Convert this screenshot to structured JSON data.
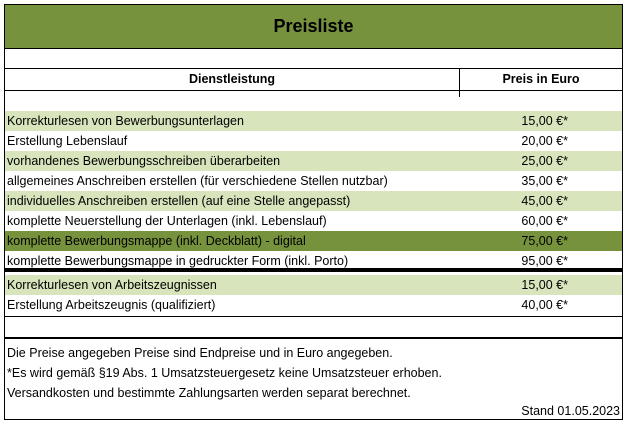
{
  "title": "Preisliste",
  "columns": {
    "service": "Dienstleistung",
    "price": "Preis in Euro"
  },
  "rows": [
    {
      "service": "Korrekturlesen von Bewerbungsunterlagen",
      "price": "15,00 €*"
    },
    {
      "service": "Erstellung Lebenslauf",
      "price": "20,00 €*"
    },
    {
      "service": "vorhandenes Bewerbungsschreiben überarbeiten",
      "price": "25,00 €*"
    },
    {
      "service": "allgemeines Anschreiben erstellen (für verschiedene Stellen nutzbar)",
      "price": "35,00 €*"
    },
    {
      "service": "individuelles Anschreiben erstellen (auf eine Stelle angepasst)",
      "price": "45,00 €*"
    },
    {
      "service": "komplette Neuerstellung der Unterlagen (inkl. Lebenslauf)",
      "price": "60,00 €*"
    },
    {
      "service": "komplette Bewerbungsmappe (inkl. Deckblatt) - digital",
      "price": "75,00 €*"
    },
    {
      "service": "komplette Bewerbungsmappe in gedruckter Form (inkl. Porto)",
      "price": "95,00 €*"
    },
    {
      "service": "Korrekturlesen von Arbeitszeugnissen",
      "price": "15,00 €*"
    },
    {
      "service": "Erstellung Arbeitszeugnis (qualifiziert)",
      "price": "40,00 €*"
    }
  ],
  "notes": [
    "Die Preise angegeben Preise sind Endpreise und in Euro angegeben.",
    "*Es wird gemäß §19 Abs. 1 Umsatzsteuergesetz keine Umsatzsteuer erhoben.",
    "Versandkosten und bestimmte Zahlungsarten werden separat berechnet."
  ],
  "date": "Stand 01.05.2023",
  "colors": {
    "dark_green": "#76923c",
    "light_green": "#d8e4bc"
  }
}
